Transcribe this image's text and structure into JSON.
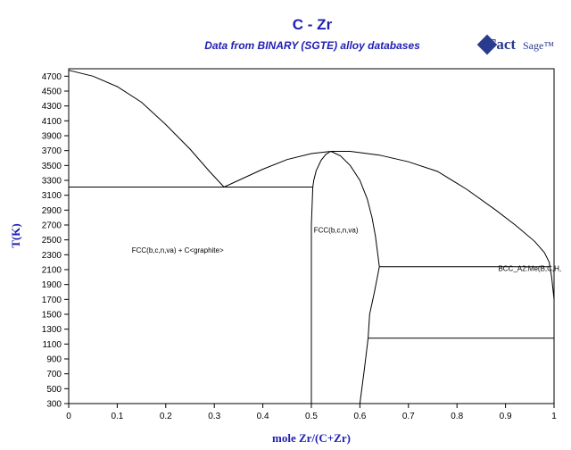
{
  "title": "C - Zr",
  "subtitle": "Data from BINARY (SGTE) alloy databases",
  "logo": {
    "text_main": "Fact",
    "text_sub": "Sage™"
  },
  "chart_data": {
    "type": "line",
    "xlabel": "mole Zr/(C+Zr)",
    "ylabel": "T(K)",
    "xlim": [
      0,
      1
    ],
    "ylim": [
      300,
      4800
    ],
    "xticks": [
      0,
      0.1,
      0.2,
      0.3,
      0.4,
      0.5,
      0.6,
      0.7,
      0.8,
      0.9,
      1
    ],
    "xtick_labels": [
      "0",
      "0.1",
      "0.2",
      "0.3",
      "0.4",
      "0.5",
      "0.6",
      "0.7",
      "0.8",
      "0.9",
      "1"
    ],
    "yticks": [
      300,
      500,
      700,
      900,
      1100,
      1300,
      1500,
      1700,
      1900,
      2100,
      2300,
      2500,
      2700,
      2900,
      3100,
      3300,
      3500,
      3700,
      3900,
      4100,
      4300,
      4500,
      4700
    ],
    "series": [
      {
        "points": [
          [
            0,
            4780
          ],
          [
            0.05,
            4700
          ],
          [
            0.1,
            4560
          ],
          [
            0.15,
            4350
          ],
          [
            0.2,
            4050
          ],
          [
            0.25,
            3720
          ],
          [
            0.29,
            3420
          ],
          [
            0.32,
            3210
          ]
        ]
      },
      {
        "points": [
          [
            0.32,
            3210
          ],
          [
            0.35,
            3300
          ],
          [
            0.4,
            3450
          ],
          [
            0.45,
            3580
          ],
          [
            0.5,
            3660
          ],
          [
            0.54,
            3690
          ]
        ]
      },
      {
        "points": [
          [
            0.54,
            3690
          ],
          [
            0.58,
            3690
          ],
          [
            0.64,
            3640
          ],
          [
            0.7,
            3550
          ],
          [
            0.76,
            3420
          ],
          [
            0.82,
            3180
          ],
          [
            0.88,
            2900
          ],
          [
            0.92,
            2700
          ],
          [
            0.96,
            2480
          ],
          [
            0.98,
            2330
          ],
          [
            0.99,
            2200
          ],
          [
            0.995,
            2000
          ],
          [
            1.0,
            1700
          ]
        ]
      },
      {
        "points": [
          [
            0,
            3210
          ],
          [
            0.503,
            3210
          ]
        ]
      },
      {
        "points": [
          [
            0.503,
            3210
          ],
          [
            0.505,
            3300
          ],
          [
            0.51,
            3430
          ],
          [
            0.52,
            3570
          ],
          [
            0.53,
            3650
          ],
          [
            0.54,
            3690
          ]
        ]
      },
      {
        "points": [
          [
            0.503,
            3210
          ],
          [
            0.5,
            2700
          ],
          [
            0.5,
            300
          ]
        ]
      },
      {
        "points": [
          [
            0.54,
            3690
          ],
          [
            0.56,
            3630
          ],
          [
            0.58,
            3500
          ],
          [
            0.6,
            3300
          ],
          [
            0.615,
            3050
          ],
          [
            0.625,
            2800
          ],
          [
            0.632,
            2550
          ],
          [
            0.637,
            2300
          ],
          [
            0.64,
            2140
          ]
        ]
      },
      {
        "points": [
          [
            0.64,
            2140
          ],
          [
            0.63,
            1800
          ],
          [
            0.62,
            1500
          ],
          [
            0.617,
            1180
          ],
          [
            0.61,
            800
          ],
          [
            0.6,
            300
          ]
        ]
      },
      {
        "points": [
          [
            0.64,
            2140
          ],
          [
            0.99,
            2140
          ]
        ]
      },
      {
        "points": [
          [
            0.617,
            1180
          ],
          [
            1.0,
            1180
          ]
        ]
      }
    ],
    "annotations": [
      {
        "text": "FCC(b,c,n,va) + C<graphite>",
        "x": 0.13,
        "y": 2330
      },
      {
        "text": "FCC(b,c,n,va)",
        "x": 0.505,
        "y": 2600
      },
      {
        "text": "BCC_A2:Me(B,C,H,",
        "x": 0.885,
        "y": 2080
      }
    ]
  }
}
